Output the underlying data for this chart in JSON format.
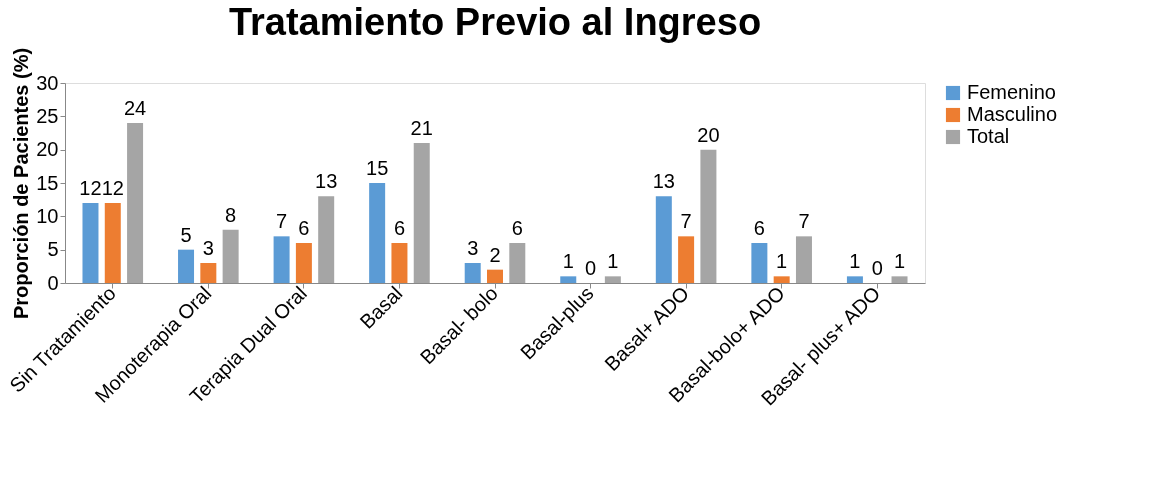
{
  "chart_data": {
    "type": "bar",
    "title": "Tratamiento Previo al Ingreso",
    "ylabel": "Proporción de Pacientes (%)",
    "categories": [
      "Sin Tratamiento",
      "Monoterapia Oral",
      "Terapia Dual Oral",
      "Basal",
      "Basal- bolo",
      "Basal-plus",
      "Basal+ ADO",
      "Basal-bolo+ ADO",
      "Basal- plus+ ADO"
    ],
    "series": [
      {
        "name": "Femenino",
        "color": "#5b9bd5",
        "values": [
          12,
          5,
          7,
          15,
          3,
          1,
          13,
          6,
          1
        ]
      },
      {
        "name": "Masculino",
        "color": "#ed7d31",
        "values": [
          12,
          3,
          6,
          6,
          2,
          0,
          7,
          1,
          0
        ]
      },
      {
        "name": "Total",
        "color": "#a5a5a5",
        "values": [
          24,
          8,
          13,
          21,
          6,
          1,
          20,
          7,
          1
        ]
      }
    ],
    "ylim": [
      0,
      30
    ],
    "yticks": [
      0,
      5,
      10,
      15,
      20,
      25,
      30
    ],
    "grid": false,
    "legend": "right",
    "data_labels": true
  }
}
